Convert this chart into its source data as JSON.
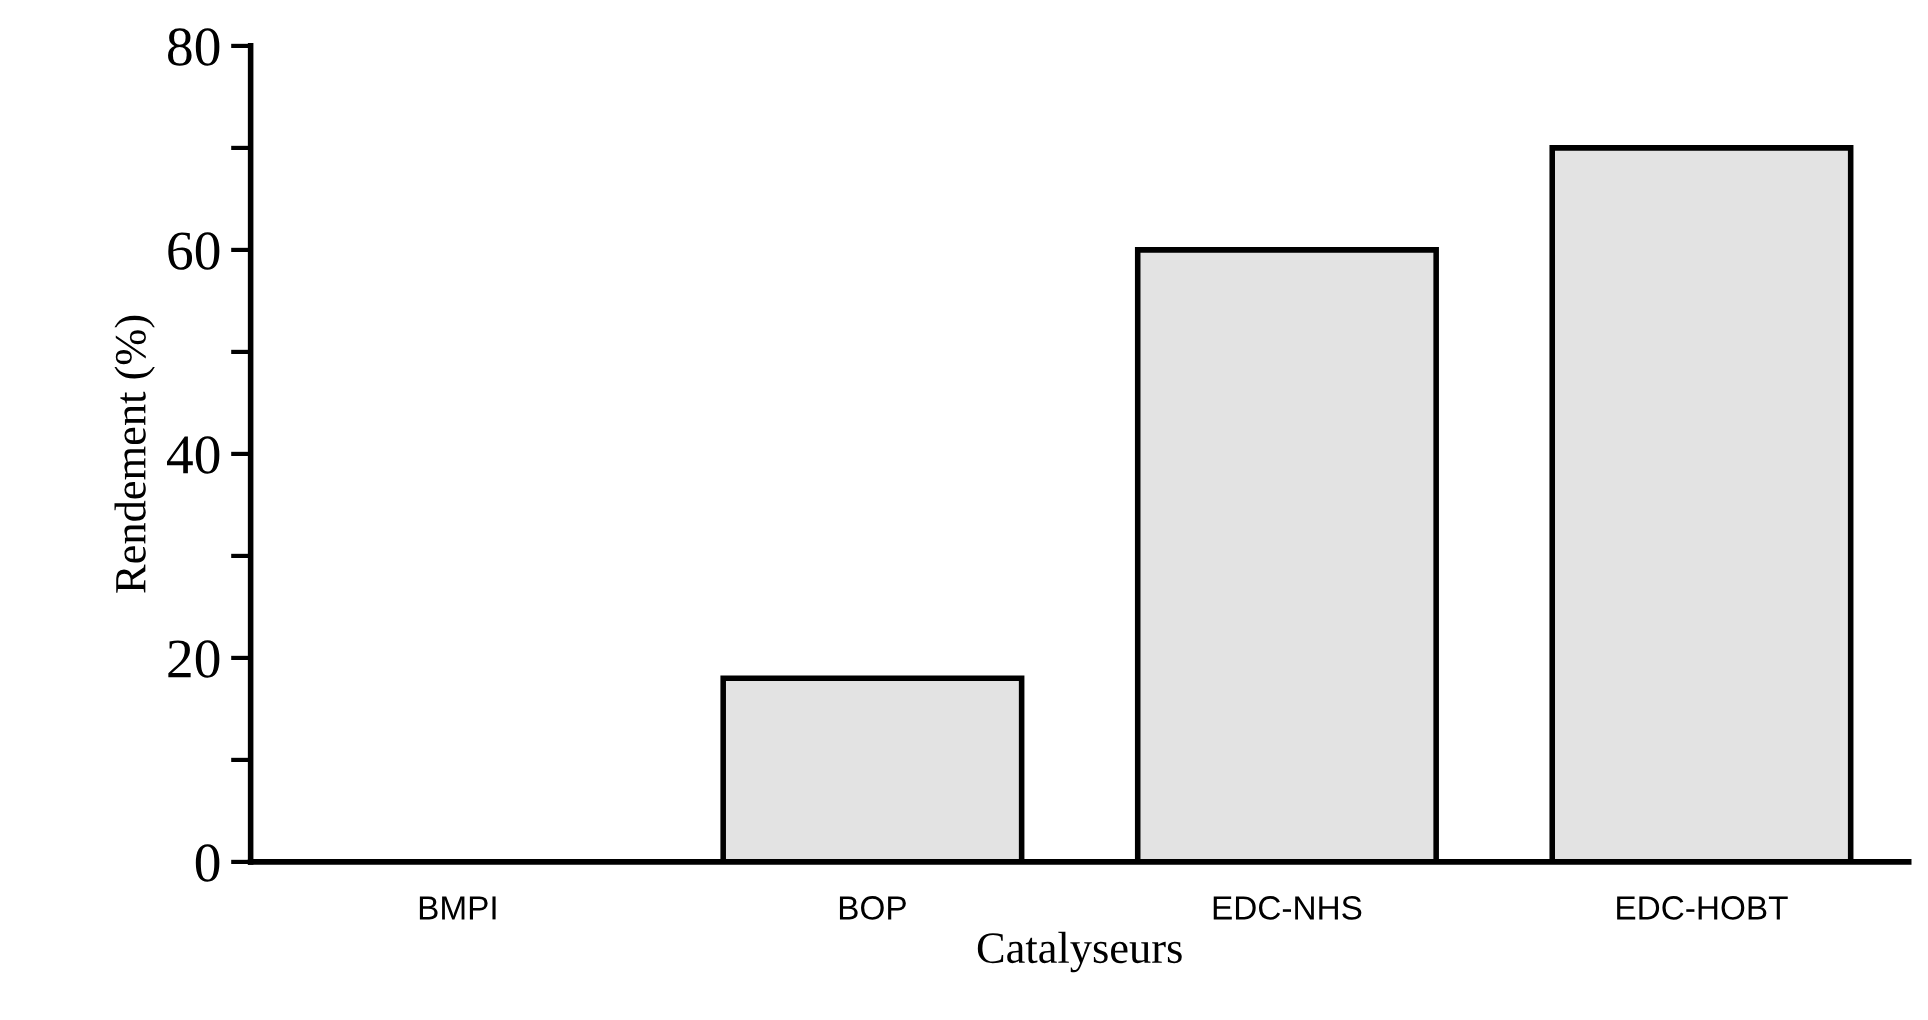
{
  "chart_data": {
    "type": "bar",
    "xlabel": "Catalyseurs",
    "ylabel": "Rendement (%)",
    "categories": [
      "BMPI",
      "BOP",
      "EDC-NHS",
      "EDC-HOBT"
    ],
    "values": [
      0,
      18,
      60,
      70
    ],
    "color": "#e3e3e3",
    "ylim": [
      0,
      80
    ],
    "yticks": [
      0,
      {
        "value": 10,
        "label": null
      },
      20,
      {
        "value": 30,
        "label": null
      },
      40,
      {
        "value": 50,
        "label": null
      },
      60,
      {
        "value": 70,
        "label": null
      },
      80
    ],
    "grid": false
  }
}
